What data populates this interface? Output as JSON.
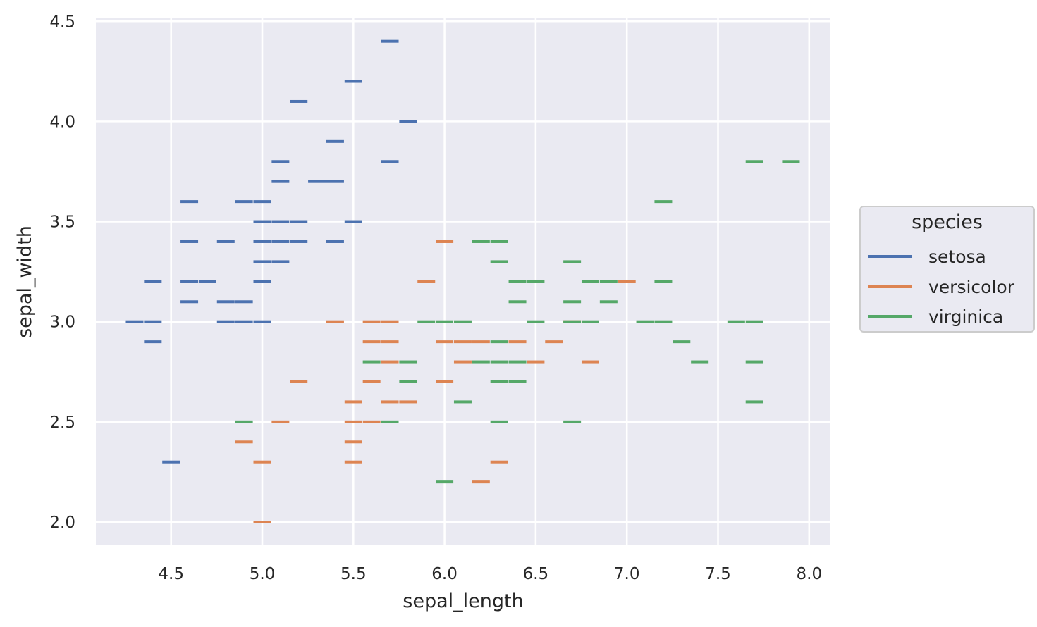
{
  "chart_data": {
    "type": "scatter",
    "marker": "horizontal-dash",
    "title": "",
    "xlabel": "sepal_length",
    "ylabel": "sepal_width",
    "xlim": [
      4.08,
      8.12
    ],
    "ylim": [
      1.89,
      4.51
    ],
    "xticks": [
      "4.5",
      "5.0",
      "5.5",
      "6.0",
      "6.5",
      "7.0",
      "7.5",
      "8.0"
    ],
    "yticks": [
      "2.0",
      "2.5",
      "3.0",
      "3.5",
      "4.0",
      "4.5"
    ],
    "grid": true,
    "background": "#eaeaf2",
    "legend": {
      "title": "species",
      "position": "right",
      "entries": [
        "setosa",
        "versicolor",
        "virginica"
      ]
    },
    "series": [
      {
        "name": "setosa",
        "color": "#4c72b0",
        "points": [
          [
            5.7,
            4.4
          ],
          [
            5.5,
            4.2
          ],
          [
            5.2,
            4.1
          ],
          [
            5.8,
            4.0
          ],
          [
            5.4,
            3.9
          ],
          [
            5.1,
            3.8
          ],
          [
            5.7,
            3.8
          ],
          [
            5.1,
            3.7
          ],
          [
            5.3,
            3.7
          ],
          [
            5.4,
            3.7
          ],
          [
            4.6,
            3.6
          ],
          [
            4.9,
            3.6
          ],
          [
            5.0,
            3.6
          ],
          [
            5.0,
            3.5
          ],
          [
            5.1,
            3.5
          ],
          [
            5.2,
            3.5
          ],
          [
            5.5,
            3.5
          ],
          [
            4.6,
            3.4
          ],
          [
            4.8,
            3.4
          ],
          [
            5.0,
            3.4
          ],
          [
            5.1,
            3.4
          ],
          [
            5.2,
            3.4
          ],
          [
            5.4,
            3.4
          ],
          [
            5.0,
            3.3
          ],
          [
            5.1,
            3.3
          ],
          [
            4.4,
            3.2
          ],
          [
            4.6,
            3.2
          ],
          [
            4.7,
            3.2
          ],
          [
            5.0,
            3.2
          ],
          [
            4.6,
            3.1
          ],
          [
            4.8,
            3.1
          ],
          [
            4.9,
            3.1
          ],
          [
            4.3,
            3.0
          ],
          [
            4.4,
            3.0
          ],
          [
            4.8,
            3.0
          ],
          [
            4.9,
            3.0
          ],
          [
            5.0,
            3.0
          ],
          [
            4.4,
            2.9
          ],
          [
            4.5,
            2.3
          ]
        ]
      },
      {
        "name": "versicolor",
        "color": "#dd8452",
        "points": [
          [
            6.0,
            3.4
          ],
          [
            5.9,
            3.2
          ],
          [
            7.0,
            3.2
          ],
          [
            5.4,
            3.0
          ],
          [
            5.6,
            3.0
          ],
          [
            5.7,
            3.0
          ],
          [
            6.7,
            3.0
          ],
          [
            5.6,
            2.9
          ],
          [
            5.7,
            2.9
          ],
          [
            6.0,
            2.9
          ],
          [
            6.1,
            2.9
          ],
          [
            6.2,
            2.9
          ],
          [
            6.4,
            2.9
          ],
          [
            6.6,
            2.9
          ],
          [
            5.7,
            2.8
          ],
          [
            6.1,
            2.8
          ],
          [
            6.5,
            2.8
          ],
          [
            6.8,
            2.8
          ],
          [
            5.2,
            2.7
          ],
          [
            5.6,
            2.7
          ],
          [
            6.0,
            2.7
          ],
          [
            5.5,
            2.6
          ],
          [
            5.7,
            2.6
          ],
          [
            5.8,
            2.6
          ],
          [
            5.1,
            2.5
          ],
          [
            5.5,
            2.5
          ],
          [
            5.6,
            2.5
          ],
          [
            4.9,
            2.4
          ],
          [
            5.5,
            2.4
          ],
          [
            5.0,
            2.3
          ],
          [
            5.5,
            2.3
          ],
          [
            6.3,
            2.3
          ],
          [
            6.2,
            2.2
          ],
          [
            5.0,
            2.0
          ]
        ]
      },
      {
        "name": "virginica",
        "color": "#55a868",
        "points": [
          [
            7.7,
            3.8
          ],
          [
            7.9,
            3.8
          ],
          [
            7.2,
            3.6
          ],
          [
            6.2,
            3.4
          ],
          [
            6.3,
            3.4
          ],
          [
            6.3,
            3.3
          ],
          [
            6.7,
            3.3
          ],
          [
            6.4,
            3.2
          ],
          [
            6.5,
            3.2
          ],
          [
            6.8,
            3.2
          ],
          [
            6.9,
            3.2
          ],
          [
            7.2,
            3.2
          ],
          [
            6.4,
            3.1
          ],
          [
            6.7,
            3.1
          ],
          [
            6.9,
            3.1
          ],
          [
            5.9,
            3.0
          ],
          [
            6.0,
            3.0
          ],
          [
            6.1,
            3.0
          ],
          [
            6.5,
            3.0
          ],
          [
            6.7,
            3.0
          ],
          [
            6.8,
            3.0
          ],
          [
            7.1,
            3.0
          ],
          [
            7.2,
            3.0
          ],
          [
            7.6,
            3.0
          ],
          [
            7.7,
            3.0
          ],
          [
            6.3,
            2.9
          ],
          [
            7.3,
            2.9
          ],
          [
            5.6,
            2.8
          ],
          [
            5.8,
            2.8
          ],
          [
            6.2,
            2.8
          ],
          [
            6.3,
            2.8
          ],
          [
            6.4,
            2.8
          ],
          [
            7.4,
            2.8
          ],
          [
            7.7,
            2.8
          ],
          [
            5.8,
            2.7
          ],
          [
            6.3,
            2.7
          ],
          [
            6.4,
            2.7
          ],
          [
            6.1,
            2.6
          ],
          [
            7.7,
            2.6
          ],
          [
            4.9,
            2.5
          ],
          [
            5.7,
            2.5
          ],
          [
            6.3,
            2.5
          ],
          [
            6.7,
            2.5
          ],
          [
            6.0,
            2.2
          ]
        ]
      }
    ]
  },
  "legend": {
    "title": "species",
    "items": [
      {
        "label": "setosa",
        "color": "#4c72b0"
      },
      {
        "label": "versicolor",
        "color": "#dd8452"
      },
      {
        "label": "virginica",
        "color": "#55a868"
      }
    ]
  },
  "axes": {
    "xlabel": "sepal_length",
    "ylabel": "sepal_width"
  }
}
